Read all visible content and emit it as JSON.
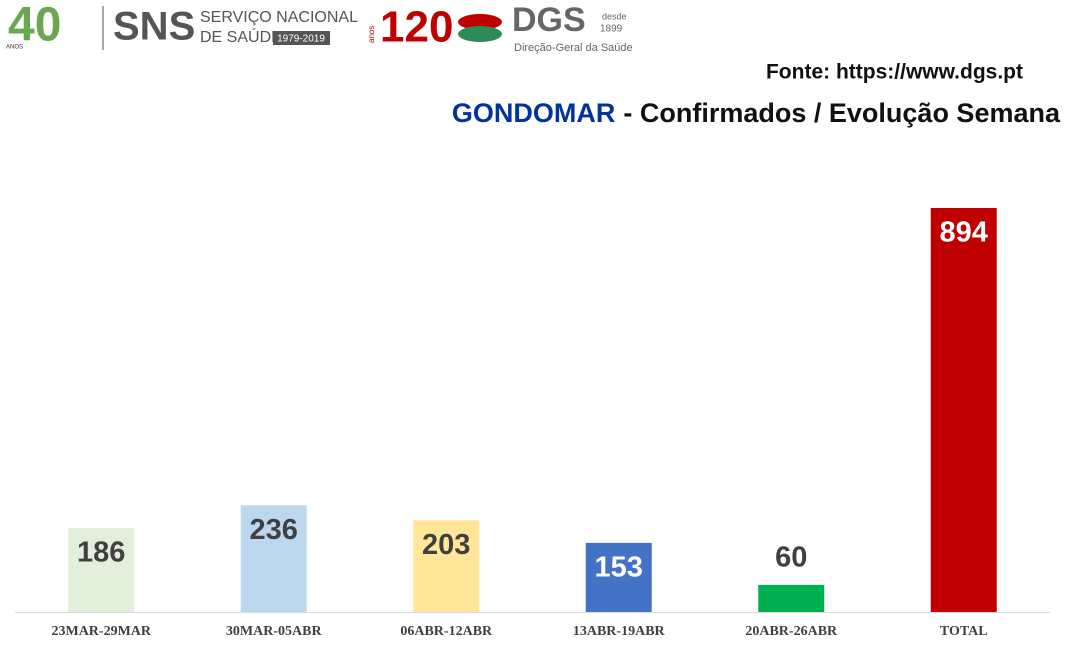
{
  "logos": {
    "sns_years": "40",
    "sns_years_word": "ANOS",
    "sns": "SNS",
    "sns_line1": "SERVIÇO NACIONAL",
    "sns_line2": "DE SAÚDE",
    "sns_period": "1979-2019",
    "dgs_years": "120",
    "dgs_years_word": "anos",
    "dgs": "DGS",
    "dgs_since": "desde",
    "dgs_since_year": "1899",
    "dgs_name": "Direção-Geral da Saúde"
  },
  "chart_data": {
    "type": "bar",
    "source": "Fonte: https://www.dgs.pt",
    "title_highlight": "GONDOMAR",
    "title": "- Confirmados / Evolução Semana",
    "categories": [
      "23MAR-29MAR",
      "30MAR-05ABR",
      "06ABR-12ABR",
      "13ABR-19ABR",
      "20ABR-26ABR",
      "TOTAL"
    ],
    "values": [
      186,
      236,
      203,
      153,
      60,
      894
    ],
    "colors": [
      "#e2efda",
      "#bdd7ee",
      "#ffe699",
      "#4472c4",
      "#00b050",
      "#c00000"
    ],
    "label_colors": [
      "#404040",
      "#404040",
      "#404040",
      "#ffffff",
      "#404040",
      "#ffffff"
    ]
  }
}
